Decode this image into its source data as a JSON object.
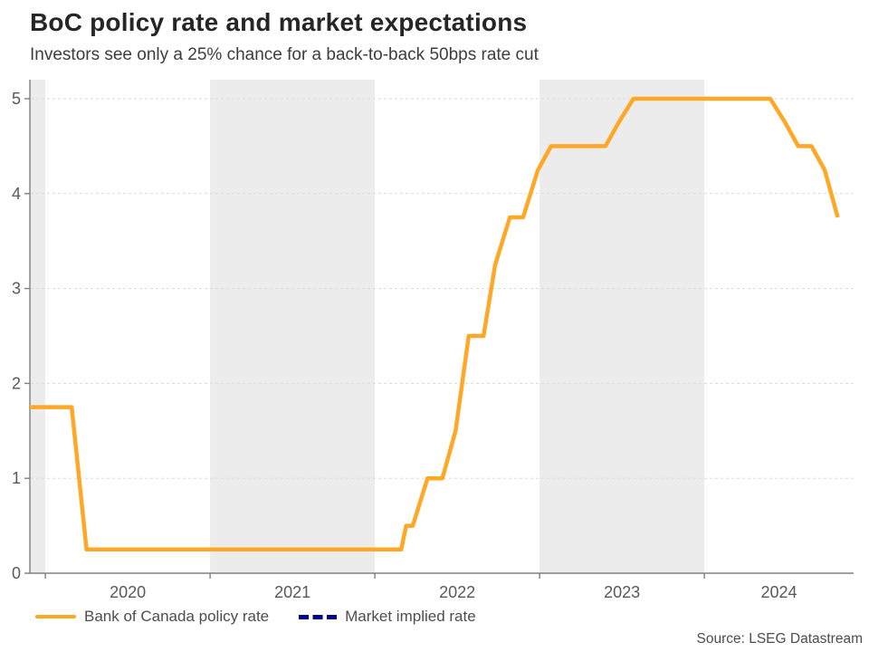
{
  "chart_data": {
    "type": "line",
    "title": "BoC policy rate and market expectations",
    "subtitle": "Investors see only a 25% chance for a back-to-back 50bps rate cut",
    "source": "Source: LSEG Datastream",
    "x_range": [
      2019.906,
      2024.906
    ],
    "y_range": [
      0,
      5.2
    ],
    "y_ticks": [
      0,
      1,
      2,
      3,
      4,
      5
    ],
    "x_tick_years": [
      2020,
      2021,
      2022,
      2023,
      2024
    ],
    "x_tick_labels": [
      "2020",
      "2021",
      "2022",
      "2023",
      "2024"
    ],
    "shaded_bands": [
      [
        2019.906,
        2020
      ],
      [
        2021,
        2022
      ],
      [
        2023,
        2024
      ]
    ],
    "grid": "horizontal-dashed",
    "legend_position": "bottom-left",
    "colors": {
      "band": "#ECECEC",
      "gridline": "#DADADA",
      "axis": "#808080",
      "tick_label": "#595959",
      "policy_rate": "#FFA726",
      "market_implied": "#00008B"
    },
    "series": [
      {
        "name": "Bank of Canada policy rate",
        "color": "#FFA726",
        "dash": "solid",
        "points": [
          [
            2019.906,
            1.75
          ],
          [
            2020.16,
            1.75
          ],
          [
            2020.25,
            0.25
          ],
          [
            2022.16,
            0.25
          ],
          [
            2022.19,
            0.5
          ],
          [
            2022.23,
            0.5
          ],
          [
            2022.32,
            1.0
          ],
          [
            2022.41,
            1.0
          ],
          [
            2022.49,
            1.5
          ],
          [
            2022.57,
            2.5
          ],
          [
            2022.66,
            2.5
          ],
          [
            2022.73,
            3.25
          ],
          [
            2022.82,
            3.75
          ],
          [
            2022.9,
            3.75
          ],
          [
            2022.99,
            4.25
          ],
          [
            2023.07,
            4.5
          ],
          [
            2023.4,
            4.5
          ],
          [
            2023.48,
            4.75
          ],
          [
            2023.57,
            5.0
          ],
          [
            2024.4,
            5.0
          ],
          [
            2024.49,
            4.75
          ],
          [
            2024.57,
            4.5
          ],
          [
            2024.65,
            4.5
          ],
          [
            2024.73,
            4.25
          ],
          [
            2024.81,
            3.75
          ]
        ]
      },
      {
        "name": "Market implied rate",
        "color": "#00008B",
        "dash": "dashed",
        "points": []
      }
    ]
  }
}
